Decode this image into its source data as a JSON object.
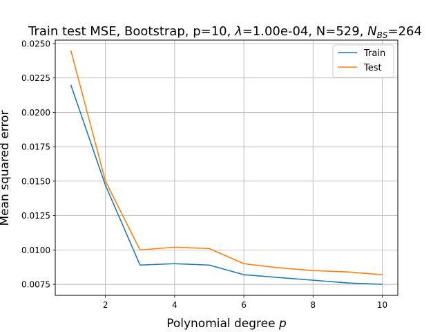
{
  "chart_data": {
    "type": "line",
    "title_parts": {
      "prefix": "Train test MSE, Bootstrap, p=10, ",
      "lambda_symbol": "λ",
      "lambda_value": "=1.00e-04, N=529, ",
      "nbs_symbol": "N",
      "nbs_subscript": "BS",
      "nbs_value": "=264"
    },
    "xlabel": "Polynomial degree",
    "xlabel_var": "p",
    "ylabel": "Mean squared error",
    "x": [
      1,
      2,
      3,
      4,
      5,
      6,
      7,
      8,
      9,
      10
    ],
    "xlim": [
      0.55,
      10.45
    ],
    "ylim": [
      0.0067,
      0.02525
    ],
    "xticks": [
      2,
      4,
      6,
      8,
      10
    ],
    "xtick_labels": [
      "2",
      "4",
      "6",
      "8",
      "10"
    ],
    "yticks": [
      0.0075,
      0.01,
      0.0125,
      0.015,
      0.0175,
      0.02,
      0.0225,
      0.025
    ],
    "ytick_labels": [
      "0.0075",
      "0.0100",
      "0.0125",
      "0.0150",
      "0.0175",
      "0.0200",
      "0.0225",
      "0.0250"
    ],
    "grid": true,
    "legend_position": "top-right",
    "series": [
      {
        "name": "Train",
        "color": "#1f77b4",
        "values": [
          0.022,
          0.0147,
          0.0089,
          0.009,
          0.0089,
          0.0082,
          0.008,
          0.0078,
          0.0076,
          0.0075
        ]
      },
      {
        "name": "Test",
        "color": "#ff7f0e",
        "values": [
          0.0245,
          0.015,
          0.01,
          0.0102,
          0.0101,
          0.009,
          0.0087,
          0.0085,
          0.0084,
          0.0082
        ]
      }
    ]
  }
}
